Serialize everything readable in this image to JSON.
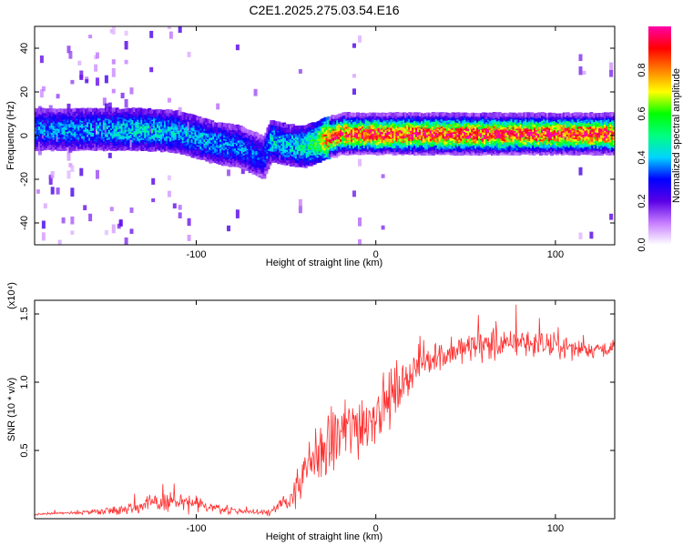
{
  "title": "C2E1.2025.275.03.54.E16",
  "chart_data": [
    {
      "type": "heatmap",
      "title": "",
      "xlabel": "Height of straight line (km)",
      "ylabel": "Frequency (Hz)",
      "xlim": [
        -190,
        133
      ],
      "ylim": [
        -50,
        50
      ],
      "xticks": [
        -100,
        0,
        100
      ],
      "yticks": [
        -40,
        -20,
        0,
        20,
        40
      ],
      "grid": false,
      "colorbar": {
        "label": "Normalized spectral amplitude",
        "range": [
          0,
          1
        ],
        "ticks": [
          "0.0",
          "0.2",
          "0.4",
          "0.6",
          "0.8"
        ],
        "colors": [
          "#ffffff",
          "#c77dff",
          "#5a00e6",
          "#0000ff",
          "#00d4ff",
          "#00ff7f",
          "#00ff00",
          "#ffff00",
          "#ff8000",
          "#ff0000",
          "#ff00aa"
        ]
      },
      "ridge": {
        "x": [
          -190,
          -160,
          -130,
          -110,
          -90,
          -75,
          -62,
          -58,
          -50,
          -40,
          -33,
          -28,
          -22,
          -20,
          0,
          40,
          80,
          120,
          133
        ],
        "frequency_hz": [
          3,
          3,
          3,
          2,
          -3,
          -5,
          -10,
          -2,
          -4,
          -5,
          -3,
          -1,
          0,
          1,
          1,
          1,
          1,
          1,
          1
        ],
        "peak_amplitude": [
          0.35,
          0.38,
          0.42,
          0.4,
          0.38,
          0.35,
          0.3,
          0.42,
          0.4,
          0.45,
          0.55,
          0.75,
          0.9,
          0.85,
          0.88,
          0.9,
          0.88,
          0.9,
          0.88
        ]
      }
    },
    {
      "type": "line",
      "title": "",
      "xlabel": "Height of straight line (km)",
      "ylabel": "SNR (10 * v/v)",
      "y_multiplier": "(x10⁴)",
      "xlim": [
        -190,
        133
      ],
      "ylim": [
        0,
        1.6
      ],
      "xticks": [
        -100,
        0,
        100
      ],
      "yticks": [
        "0.5",
        "1.0",
        "1.5"
      ],
      "grid": false,
      "color": "#ff3030",
      "series": [
        {
          "x": [
            -190,
            -180,
            -170,
            -160,
            -150,
            -140,
            -130,
            -120,
            -110,
            -100,
            -90,
            -80,
            -70,
            -60,
            -55,
            -50,
            -45,
            -40,
            -35,
            -30,
            -25,
            -20,
            -15,
            -10,
            -5,
            0,
            5,
            10,
            15,
            20,
            25,
            30,
            40,
            50,
            60,
            70,
            80,
            90,
            100,
            110,
            120,
            133
          ],
          "y": [
            0.03,
            0.04,
            0.04,
            0.05,
            0.06,
            0.07,
            0.1,
            0.12,
            0.12,
            0.1,
            0.08,
            0.06,
            0.05,
            0.05,
            0.08,
            0.12,
            0.2,
            0.3,
            0.42,
            0.5,
            0.55,
            0.62,
            0.65,
            0.7,
            0.72,
            0.78,
            0.85,
            0.92,
            1.0,
            1.08,
            1.12,
            1.18,
            1.2,
            1.25,
            1.28,
            1.27,
            1.3,
            1.28,
            1.26,
            1.25,
            1.24,
            1.26
          ],
          "noise": [
            0.01,
            0.01,
            0.01,
            0.02,
            0.03,
            0.04,
            0.06,
            0.08,
            0.08,
            0.06,
            0.04,
            0.03,
            0.02,
            0.03,
            0.05,
            0.08,
            0.12,
            0.18,
            0.25,
            0.3,
            0.3,
            0.3,
            0.28,
            0.3,
            0.25,
            0.25,
            0.22,
            0.2,
            0.18,
            0.15,
            0.14,
            0.13,
            0.12,
            0.12,
            0.14,
            0.12,
            0.12,
            0.1,
            0.1,
            0.08,
            0.07,
            0.06
          ]
        }
      ]
    }
  ]
}
